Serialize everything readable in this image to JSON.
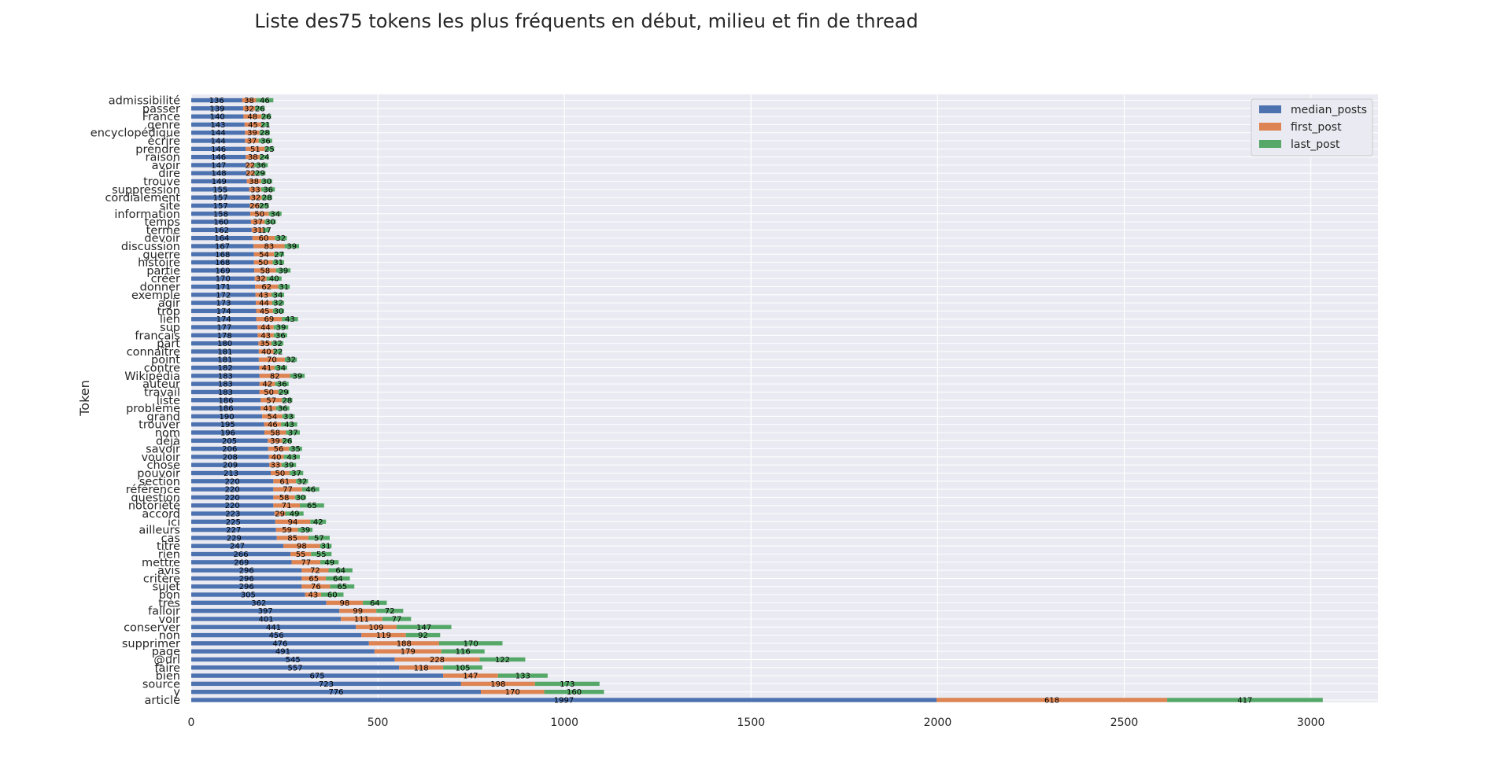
{
  "chart_data": {
    "type": "bar",
    "orientation": "horizontal",
    "stacked": true,
    "title": "Liste des75 tokens les plus fréquents en début, milieu et fin de thread",
    "ylabel": "Token",
    "xlabel": "",
    "xlim": [
      0,
      3180
    ],
    "xticks": [
      "0",
      "500",
      "1000",
      "1500",
      "2000",
      "2500",
      "3000"
    ],
    "grid": true,
    "legend_position": "top-right",
    "colors": {
      "median_posts": "#4c72b0",
      "first_post": "#dd8452",
      "last_post": "#55a868",
      "background": "#eaeaf2",
      "grid": "#ffffff"
    },
    "categories": [
      "admissibilité",
      "passer",
      "France",
      "genre",
      "encyclopédique",
      "écrire",
      "prendre",
      "raison",
      "avoir",
      "dire",
      "trouve",
      "suppression",
      "cordialement",
      "site",
      "information",
      "temps",
      "terme",
      "devoir",
      "discussion",
      "guerre",
      "histoire",
      "partie",
      "créer",
      "donner",
      "exemple",
      "agir",
      "trop",
      "lien",
      "sup",
      "français",
      "part",
      "connaître",
      "point",
      "contre",
      "Wikipédia",
      "auteur",
      "travail",
      "liste",
      "problème",
      "grand",
      "trouver",
      "nom",
      "déjà",
      "savoir",
      "vouloir",
      "chose",
      "pouvoir",
      "section",
      "référence",
      "question",
      "notoriété",
      "accord",
      "ici",
      "ailleurs",
      "cas",
      "titre",
      "rien",
      "mettre",
      "avis",
      "critère",
      "sujet",
      "bon",
      "très",
      "falloir",
      "voir",
      "conserver",
      "non",
      "supprimer",
      "page",
      "@url",
      "faire",
      "bien",
      "source",
      "y",
      "article"
    ],
    "series": [
      {
        "name": "median_posts",
        "values": [
          136,
          139,
          140,
          143,
          144,
          144,
          146,
          146,
          147,
          148,
          149,
          155,
          157,
          157,
          158,
          160,
          162,
          164,
          167,
          168,
          168,
          169,
          170,
          171,
          172,
          173,
          174,
          174,
          177,
          178,
          180,
          181,
          181,
          182,
          183,
          183,
          183,
          186,
          186,
          190,
          195,
          196,
          205,
          206,
          208,
          209,
          213,
          220,
          220,
          220,
          220,
          223,
          225,
          227,
          229,
          247,
          266,
          269,
          296,
          296,
          296,
          305,
          362,
          397,
          401,
          441,
          456,
          476,
          491,
          545,
          557,
          675,
          723,
          776,
          1997
        ]
      },
      {
        "name": "first_post",
        "values": [
          38,
          32,
          48,
          45,
          39,
          37,
          51,
          38,
          22,
          22,
          38,
          33,
          32,
          26,
          50,
          37,
          31,
          60,
          83,
          54,
          50,
          58,
          32,
          62,
          43,
          44,
          45,
          69,
          44,
          43,
          35,
          40,
          70,
          41,
          82,
          42,
          50,
          57,
          41,
          54,
          46,
          58,
          39,
          56,
          40,
          33,
          50,
          61,
          77,
          58,
          71,
          29,
          94,
          59,
          85,
          98,
          55,
          77,
          72,
          65,
          76,
          43,
          98,
          99,
          111,
          109,
          119,
          188,
          179,
          228,
          118,
          147,
          198,
          170,
          618
        ]
      },
      {
        "name": "last_post",
        "values": [
          46,
          26,
          26,
          21,
          28,
          36,
          25,
          24,
          36,
          29,
          30,
          36,
          28,
          25,
          34,
          30,
          17,
          32,
          39,
          27,
          31,
          39,
          40,
          31,
          34,
          32,
          30,
          43,
          39,
          36,
          32,
          22,
          32,
          34,
          39,
          36,
          29,
          28,
          36,
          33,
          43,
          37,
          26,
          35,
          43,
          39,
          37,
          32,
          46,
          30,
          65,
          49,
          42,
          39,
          57,
          31,
          55,
          49,
          64,
          64,
          65,
          60,
          64,
          72,
          77,
          147,
          92,
          170,
          116,
          122,
          105,
          133,
          173,
          160,
          417
        ]
      }
    ]
  }
}
